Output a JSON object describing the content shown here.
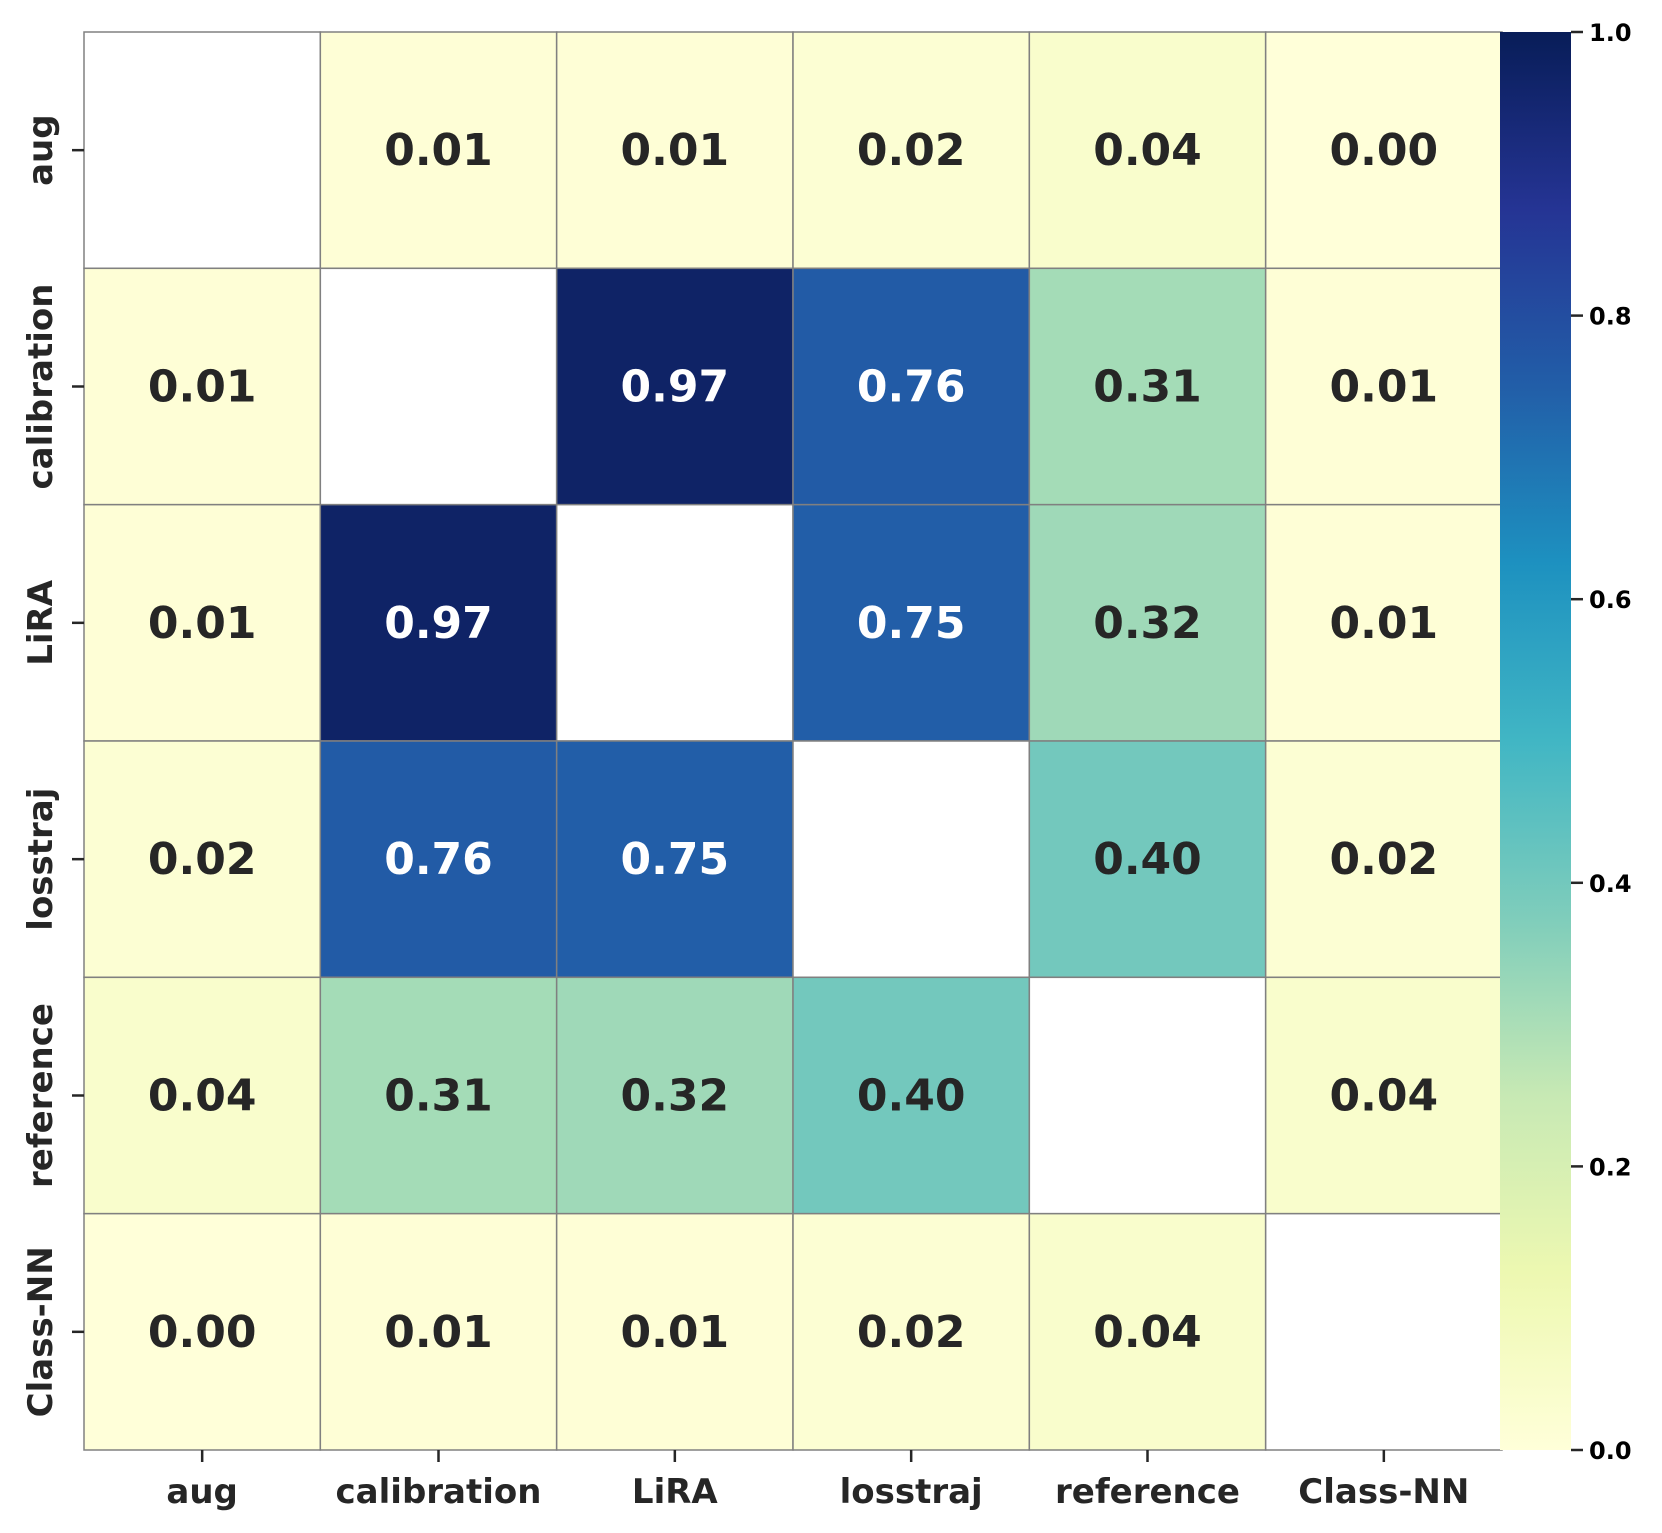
{
  "chart_data": {
    "type": "heatmap",
    "title": "",
    "xlabel": "",
    "ylabel": "",
    "x_categories": [
      "aug",
      "calibration",
      "LiRA",
      "losstraj",
      "reference",
      "Class-NN"
    ],
    "y_categories": [
      "aug",
      "calibration",
      "LiRA",
      "losstraj",
      "reference",
      "Class-NN"
    ],
    "values": [
      [
        null,
        0.01,
        0.01,
        0.02,
        0.04,
        0.0
      ],
      [
        0.01,
        null,
        0.97,
        0.76,
        0.31,
        0.01
      ],
      [
        0.01,
        0.97,
        null,
        0.75,
        0.32,
        0.01
      ],
      [
        0.02,
        0.76,
        0.75,
        null,
        0.4,
        0.02
      ],
      [
        0.04,
        0.31,
        0.32,
        0.4,
        null,
        0.04
      ],
      [
        0.0,
        0.01,
        0.01,
        0.02,
        0.04,
        null
      ]
    ],
    "value_format": "0.00",
    "colorbar": {
      "colormap": "YlGnBu",
      "range": [
        0.0,
        1.0
      ],
      "ticks": [
        0.0,
        0.2,
        0.4,
        0.6,
        0.8,
        1.0
      ],
      "tick_labels": [
        "0.0",
        "0.2",
        "0.4",
        "0.6",
        "0.8",
        "1.0"
      ]
    },
    "colors": {
      "cell_border": "#808080",
      "text_dark": "#262626",
      "text_light": "#ffffff",
      "tick_color": "#262626"
    }
  }
}
